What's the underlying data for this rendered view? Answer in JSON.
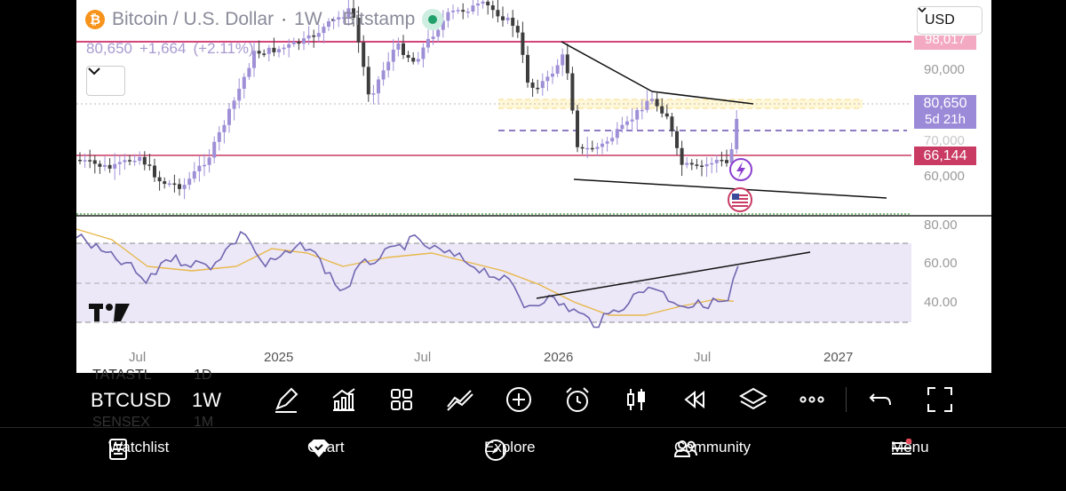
{
  "header": {
    "symbol_title": "Bitcoin / U.S. Dollar",
    "interval": "1W",
    "exchange": "Bitstamp",
    "btc_icon_glyph": "₿",
    "last_price": "80,650",
    "change_abs": "+1,664",
    "change_pct": "(+2.11%)"
  },
  "currency_select": {
    "value": "USD"
  },
  "price_axis": {
    "labels": [
      "90,000",
      "70,000",
      "60,000"
    ],
    "tags": {
      "top": "98,017",
      "last": "80,650",
      "countdown": "5d 21h",
      "level": "66,144"
    }
  },
  "rsi_axis": {
    "labels": [
      "80.00",
      "60.00",
      "40.00"
    ]
  },
  "time_axis": {
    "labels": [
      "Jul",
      "2025",
      "Jul",
      "2026",
      "Jul",
      "2027"
    ]
  },
  "toolbar": {
    "symbol": "BTCUSD",
    "interval": "1W",
    "ghost_rows": [
      "TATASTL",
      "1D",
      "SENSEX",
      "1M"
    ]
  },
  "tabs": [
    {
      "label": "Watchlist",
      "icon": "list-icon"
    },
    {
      "label": "Chart",
      "icon": "chart-gem-icon"
    },
    {
      "label": "Explore",
      "icon": "compass-icon"
    },
    {
      "label": "Community",
      "icon": "people-icon"
    },
    {
      "label": "Menu",
      "icon": "hamburger-icon"
    }
  ],
  "colors": {
    "candle": "#9f8fd6",
    "candle_dark": "#3d3d3d",
    "resistance": "#d4457a",
    "rsi_line": "#7066b0",
    "rsi_ma": "#e8b84a",
    "last_tag": "#9b8ad8",
    "level_tag": "#c93b63"
  },
  "chart_data": {
    "type": "candlestick",
    "symbol": "BTCUSD",
    "interval": "1W",
    "last": 80650,
    "horizontal_levels": [
      98017,
      80650,
      66144
    ],
    "price_ticks": [
      90000,
      70000,
      60000
    ],
    "rsi_ticks": [
      80,
      60,
      40
    ],
    "x_ticks": [
      "Jul",
      "2025",
      "Jul",
      "2026",
      "Jul",
      "2027"
    ]
  }
}
